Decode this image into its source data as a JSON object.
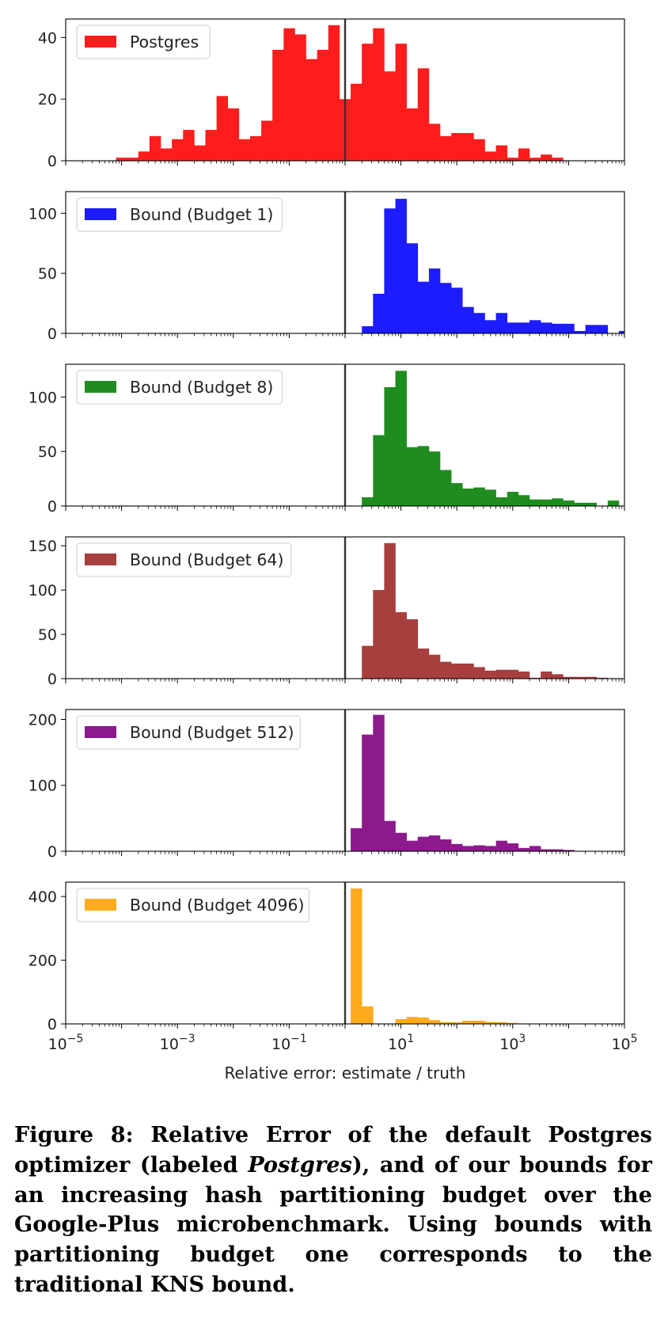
{
  "chart_data": {
    "type": "bar",
    "xlabel": "Relative error: estimate / truth",
    "x_scale": "log",
    "xlim": [
      1e-05,
      100000
    ],
    "x_ticks": [
      {
        "base": "10",
        "exp": "−5"
      },
      {
        "base": "10",
        "exp": "−3"
      },
      {
        "base": "10",
        "exp": "−1"
      },
      {
        "base": "10",
        "exp": "1"
      },
      {
        "base": "10",
        "exp": "3"
      },
      {
        "base": "10",
        "exp": "5"
      }
    ],
    "reference_line_x": 1,
    "legend_position": "top-left",
    "bin_edges_log10": [
      -4.1,
      -3.9,
      -3.7,
      -3.5,
      -3.3,
      -3.1,
      -2.9,
      -2.7,
      -2.5,
      -2.3,
      -2.1,
      -1.9,
      -1.7,
      -1.5,
      -1.3,
      -1.1,
      -0.9,
      -0.7,
      -0.5,
      -0.3,
      -0.1,
      0.1,
      0.3,
      0.5,
      0.7,
      0.9,
      1.1,
      1.3,
      1.5,
      1.7,
      1.9,
      2.1,
      2.3,
      2.5,
      2.7,
      2.9,
      3.1,
      3.3,
      3.5,
      3.7,
      3.9,
      4.1,
      4.3,
      4.5,
      4.7,
      4.9,
      5.1
    ],
    "panels": [
      {
        "name": "Postgres",
        "color": "#ff1c1c",
        "ylim": [
          0,
          46
        ],
        "yticks": [
          0,
          20,
          40
        ],
        "counts": [
          1,
          1,
          3,
          8,
          4,
          7,
          10,
          5,
          10,
          21,
          17,
          7,
          8,
          13,
          36,
          43,
          41,
          33,
          36,
          44,
          20,
          25,
          38,
          43,
          29,
          38,
          17,
          30,
          12,
          8,
          9,
          9,
          7,
          3,
          5,
          1,
          4,
          1,
          2,
          1,
          0,
          0,
          0,
          0,
          0,
          0
        ]
      },
      {
        "name": "Bound (Budget 1)",
        "color": "#1c1cff",
        "ylim": [
          0,
          118
        ],
        "yticks": [
          0,
          50,
          100
        ],
        "counts": [
          0,
          0,
          0,
          0,
          0,
          0,
          0,
          0,
          0,
          0,
          0,
          0,
          0,
          0,
          0,
          0,
          0,
          0,
          0,
          0,
          0,
          0,
          6,
          33,
          104,
          112,
          75,
          43,
          54,
          42,
          38,
          22,
          17,
          11,
          17,
          9,
          9,
          11,
          9,
          8,
          8,
          2,
          7,
          7,
          0,
          2
        ]
      },
      {
        "name": "Bound (Budget 8)",
        "color": "#1f8c1f",
        "ylim": [
          0,
          130
        ],
        "yticks": [
          0,
          50,
          100
        ],
        "counts": [
          0,
          0,
          0,
          0,
          0,
          0,
          0,
          0,
          0,
          0,
          0,
          0,
          0,
          0,
          0,
          0,
          0,
          0,
          0,
          0,
          0,
          0,
          8,
          65,
          109,
          124,
          54,
          55,
          50,
          33,
          21,
          16,
          17,
          15,
          8,
          13,
          10,
          6,
          6,
          7,
          5,
          3,
          3,
          0,
          5,
          0
        ]
      },
      {
        "name": "Bound (Budget 64)",
        "color": "#a83e3e",
        "ylim": [
          0,
          160
        ],
        "yticks": [
          0,
          50,
          100,
          150
        ],
        "counts": [
          0,
          0,
          0,
          0,
          0,
          0,
          0,
          0,
          0,
          0,
          0,
          0,
          0,
          0,
          0,
          0,
          0,
          0,
          0,
          0,
          0,
          0,
          37,
          100,
          153,
          75,
          67,
          34,
          27,
          19,
          17,
          17,
          13,
          9,
          10,
          10,
          8,
          1,
          8,
          5,
          2,
          2,
          2,
          1,
          0,
          0
        ]
      },
      {
        "name": "Bound (Budget 512)",
        "color": "#8c1a8c",
        "ylim": [
          0,
          215
        ],
        "yticks": [
          0,
          100,
          200
        ],
        "counts": [
          0,
          0,
          0,
          0,
          0,
          0,
          0,
          0,
          0,
          0,
          0,
          0,
          0,
          0,
          0,
          0,
          0,
          0,
          0,
          0,
          0,
          35,
          177,
          207,
          46,
          28,
          16,
          22,
          24,
          18,
          11,
          8,
          9,
          8,
          16,
          12,
          5,
          8,
          3,
          3,
          2,
          0,
          0,
          0,
          0,
          0
        ]
      },
      {
        "name": "Bound (Budget 4096)",
        "color": "#ffab1c",
        "ylim": [
          0,
          445
        ],
        "yticks": [
          0,
          200,
          400
        ],
        "counts": [
          0,
          0,
          0,
          0,
          0,
          0,
          0,
          0,
          0,
          0,
          0,
          0,
          0,
          0,
          0,
          0,
          0,
          0,
          0,
          0,
          0,
          425,
          55,
          0,
          0,
          15,
          22,
          20,
          12,
          5,
          5,
          10,
          10,
          6,
          5,
          3,
          0,
          0,
          0,
          0,
          0,
          0,
          0,
          0,
          0,
          0
        ]
      }
    ]
  },
  "caption": {
    "part1": "Figure 8: Relative Error of the default Postgres optimizer (labeled ",
    "italic": "Postgres",
    "part2": "), and of our bounds for an increasing hash partitioning budget over the Google-Plus microbenchmark. Using bounds with partitioning budget one corresponds to the traditional KNS bound."
  }
}
